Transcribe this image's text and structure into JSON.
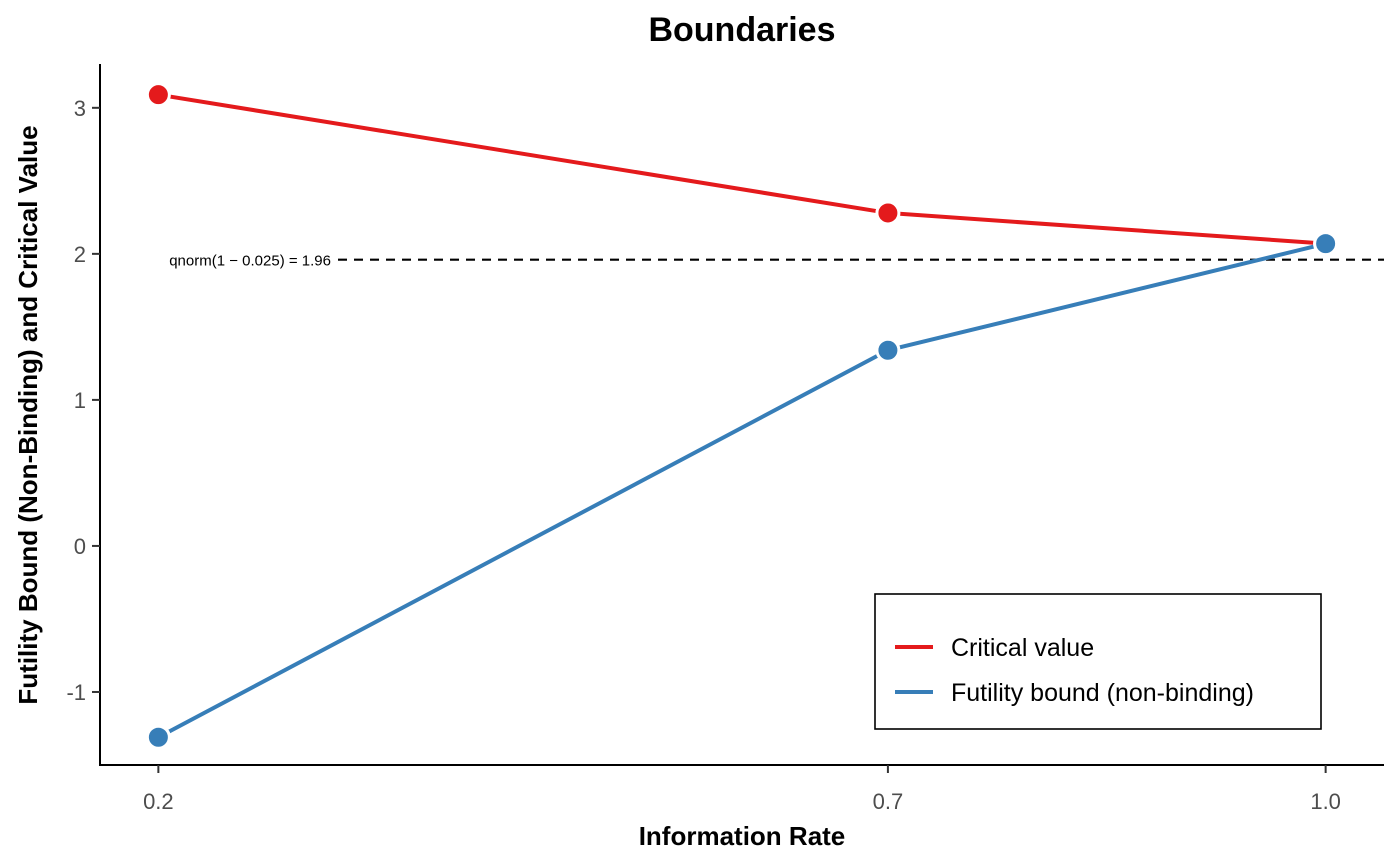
{
  "chart_data": {
    "type": "line",
    "title": "Boundaries",
    "xlabel": "Information Rate",
    "ylabel": "Futility Bound (Non-Binding) and Critical Value",
    "x": [
      0.2,
      0.7,
      1.0
    ],
    "x_tick_labels": [
      "0.2",
      "0.7",
      "1.0"
    ],
    "y_ticks": [
      -1,
      0,
      1,
      2,
      3
    ],
    "y_tick_labels": [
      "-1",
      "0",
      "1",
      "2",
      "3"
    ],
    "xlim": [
      0.16,
      1.04
    ],
    "ylim": [
      -1.5,
      3.3
    ],
    "series": [
      {
        "name": "Critical value",
        "color": "#e41a1c",
        "values": [
          3.09,
          2.28,
          2.07
        ]
      },
      {
        "name": "Futility bound (non-binding)",
        "color": "#377eb8",
        "values": [
          -1.31,
          1.34,
          2.07
        ]
      }
    ],
    "reference_line": {
      "y": 1.96,
      "label": "qnorm(1 − 0.025) = 1.96"
    },
    "legend_position": "bottom-right",
    "grid": false
  }
}
